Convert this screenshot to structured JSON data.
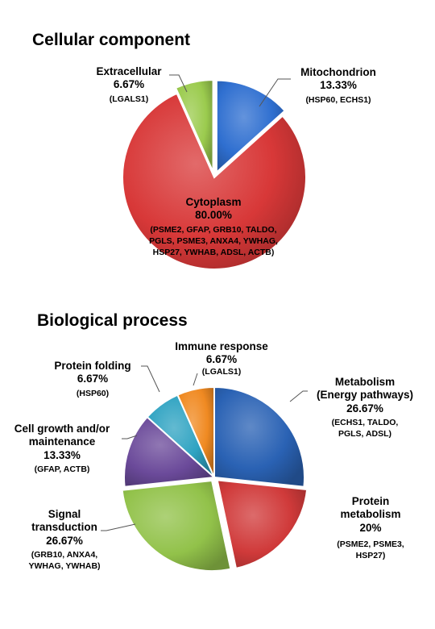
{
  "chart_data": [
    {
      "type": "pie",
      "title": "Cellular component",
      "slices": [
        {
          "name": "Mitochondrion",
          "percent_label": "13.33%",
          "value": 13.33,
          "genes": "(HSP60,  ECHS1)",
          "color": "#2f6fd0"
        },
        {
          "name": "Cytoplasm",
          "percent_label": "80.00%",
          "value": 80.0,
          "genes": [
            "(PSME2,  GFAP, GRB10, TALDO,",
            "PGLS, PSME3, ANXA4, YWHAG,",
            "HSP27, YWHAB, ADSL, ACTB)"
          ],
          "color": "#d83838"
        },
        {
          "name": "Extracellular",
          "percent_label": "6.67%",
          "value": 6.67,
          "genes": "(LGALS1)",
          "color": "#9bcb4e"
        }
      ]
    },
    {
      "type": "pie",
      "title": "Biological process",
      "slices": [
        {
          "name": [
            "Metabolism",
            "(Energy pathways)"
          ],
          "percent_label": "26.67%",
          "value": 26.67,
          "genes": [
            "(ECHS1,  TALDO,",
            "PGLS, ADSL)"
          ],
          "color": "#2a62b4"
        },
        {
          "name": [
            "Protein",
            "metabolism"
          ],
          "percent_label": "20%",
          "value": 20.0,
          "genes": [
            "(PSME2, PSME3,",
            "HSP27)"
          ],
          "color": "#d03a3a"
        },
        {
          "name": [
            "Signal",
            "transduction"
          ],
          "percent_label": "26.67%",
          "value": 26.67,
          "genes": [
            "(GRB10, ANXA4,",
            "YWHAG, YWHAB)"
          ],
          "color": "#92c24a"
        },
        {
          "name": [
            "Cell growth and/or",
            "maintenance"
          ],
          "percent_label": "13.33%",
          "value": 13.33,
          "genes": "(GFAP, ACTB)",
          "color": "#6b4a9a"
        },
        {
          "name": "Protein folding",
          "percent_label": "6.67%",
          "value": 6.67,
          "genes": "(HSP60)",
          "color": "#2fa3c2"
        },
        {
          "name": "Immune response",
          "percent_label": "6.67%",
          "value": 6.67,
          "genes": "(LGALS1)",
          "color": "#f08a22"
        }
      ]
    }
  ]
}
